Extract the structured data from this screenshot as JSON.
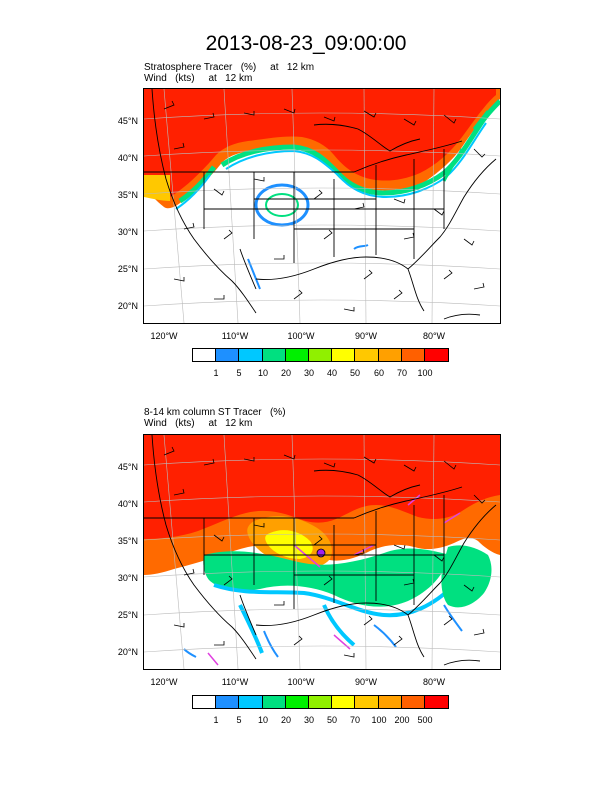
{
  "title": "2013-08-23_09:00:00",
  "panels": [
    {
      "title_line1": "Stratosphere Tracer   (%)     at   12 km",
      "title_line2": "Wind   (kts)     at   12 km",
      "lat_labels": [
        "45°N",
        "40°N",
        "35°N",
        "30°N",
        "25°N",
        "20°N"
      ],
      "lon_labels": [
        "120°W",
        "110°W",
        "100°W",
        "90°W",
        "80°W"
      ],
      "colorbar_labels": [
        "1",
        "5",
        "10",
        "20",
        "30",
        "40",
        "50",
        "60",
        "70",
        "100"
      ],
      "colorbar_colors": [
        "#ffffff",
        "#1e90ff",
        "#00c8ff",
        "#00e080",
        "#00f000",
        "#90f000",
        "#ffff00",
        "#ffc800",
        "#ffa000",
        "#ff6000",
        "#ff0000"
      ]
    },
    {
      "title_line1": "8-14 km column ST Tracer   (%)",
      "title_line2": "Wind   (kts)     at   12 km",
      "lat_labels": [
        "45°N",
        "40°N",
        "35°N",
        "30°N",
        "25°N",
        "20°N"
      ],
      "lon_labels": [
        "120°W",
        "110°W",
        "100°W",
        "90°W",
        "80°W"
      ],
      "colorbar_labels": [
        "1",
        "5",
        "10",
        "20",
        "30",
        "50",
        "70",
        "100",
        "200",
        "500"
      ],
      "colorbar_colors": [
        "#ffffff",
        "#1e90ff",
        "#00c8ff",
        "#00e080",
        "#00f000",
        "#90f000",
        "#ffff00",
        "#ffc800",
        "#ffa000",
        "#ff6000",
        "#ff0000"
      ]
    }
  ],
  "colors": {
    "high": "#ff2000",
    "mid": "#ff6a00",
    "orange": "#ffa000",
    "green": "#00e080",
    "cyan": "#00c8ff",
    "blue": "#1e90ff",
    "yellow": "#ffff00",
    "map_lines": "#000000",
    "grid": "#bbbbbb"
  }
}
